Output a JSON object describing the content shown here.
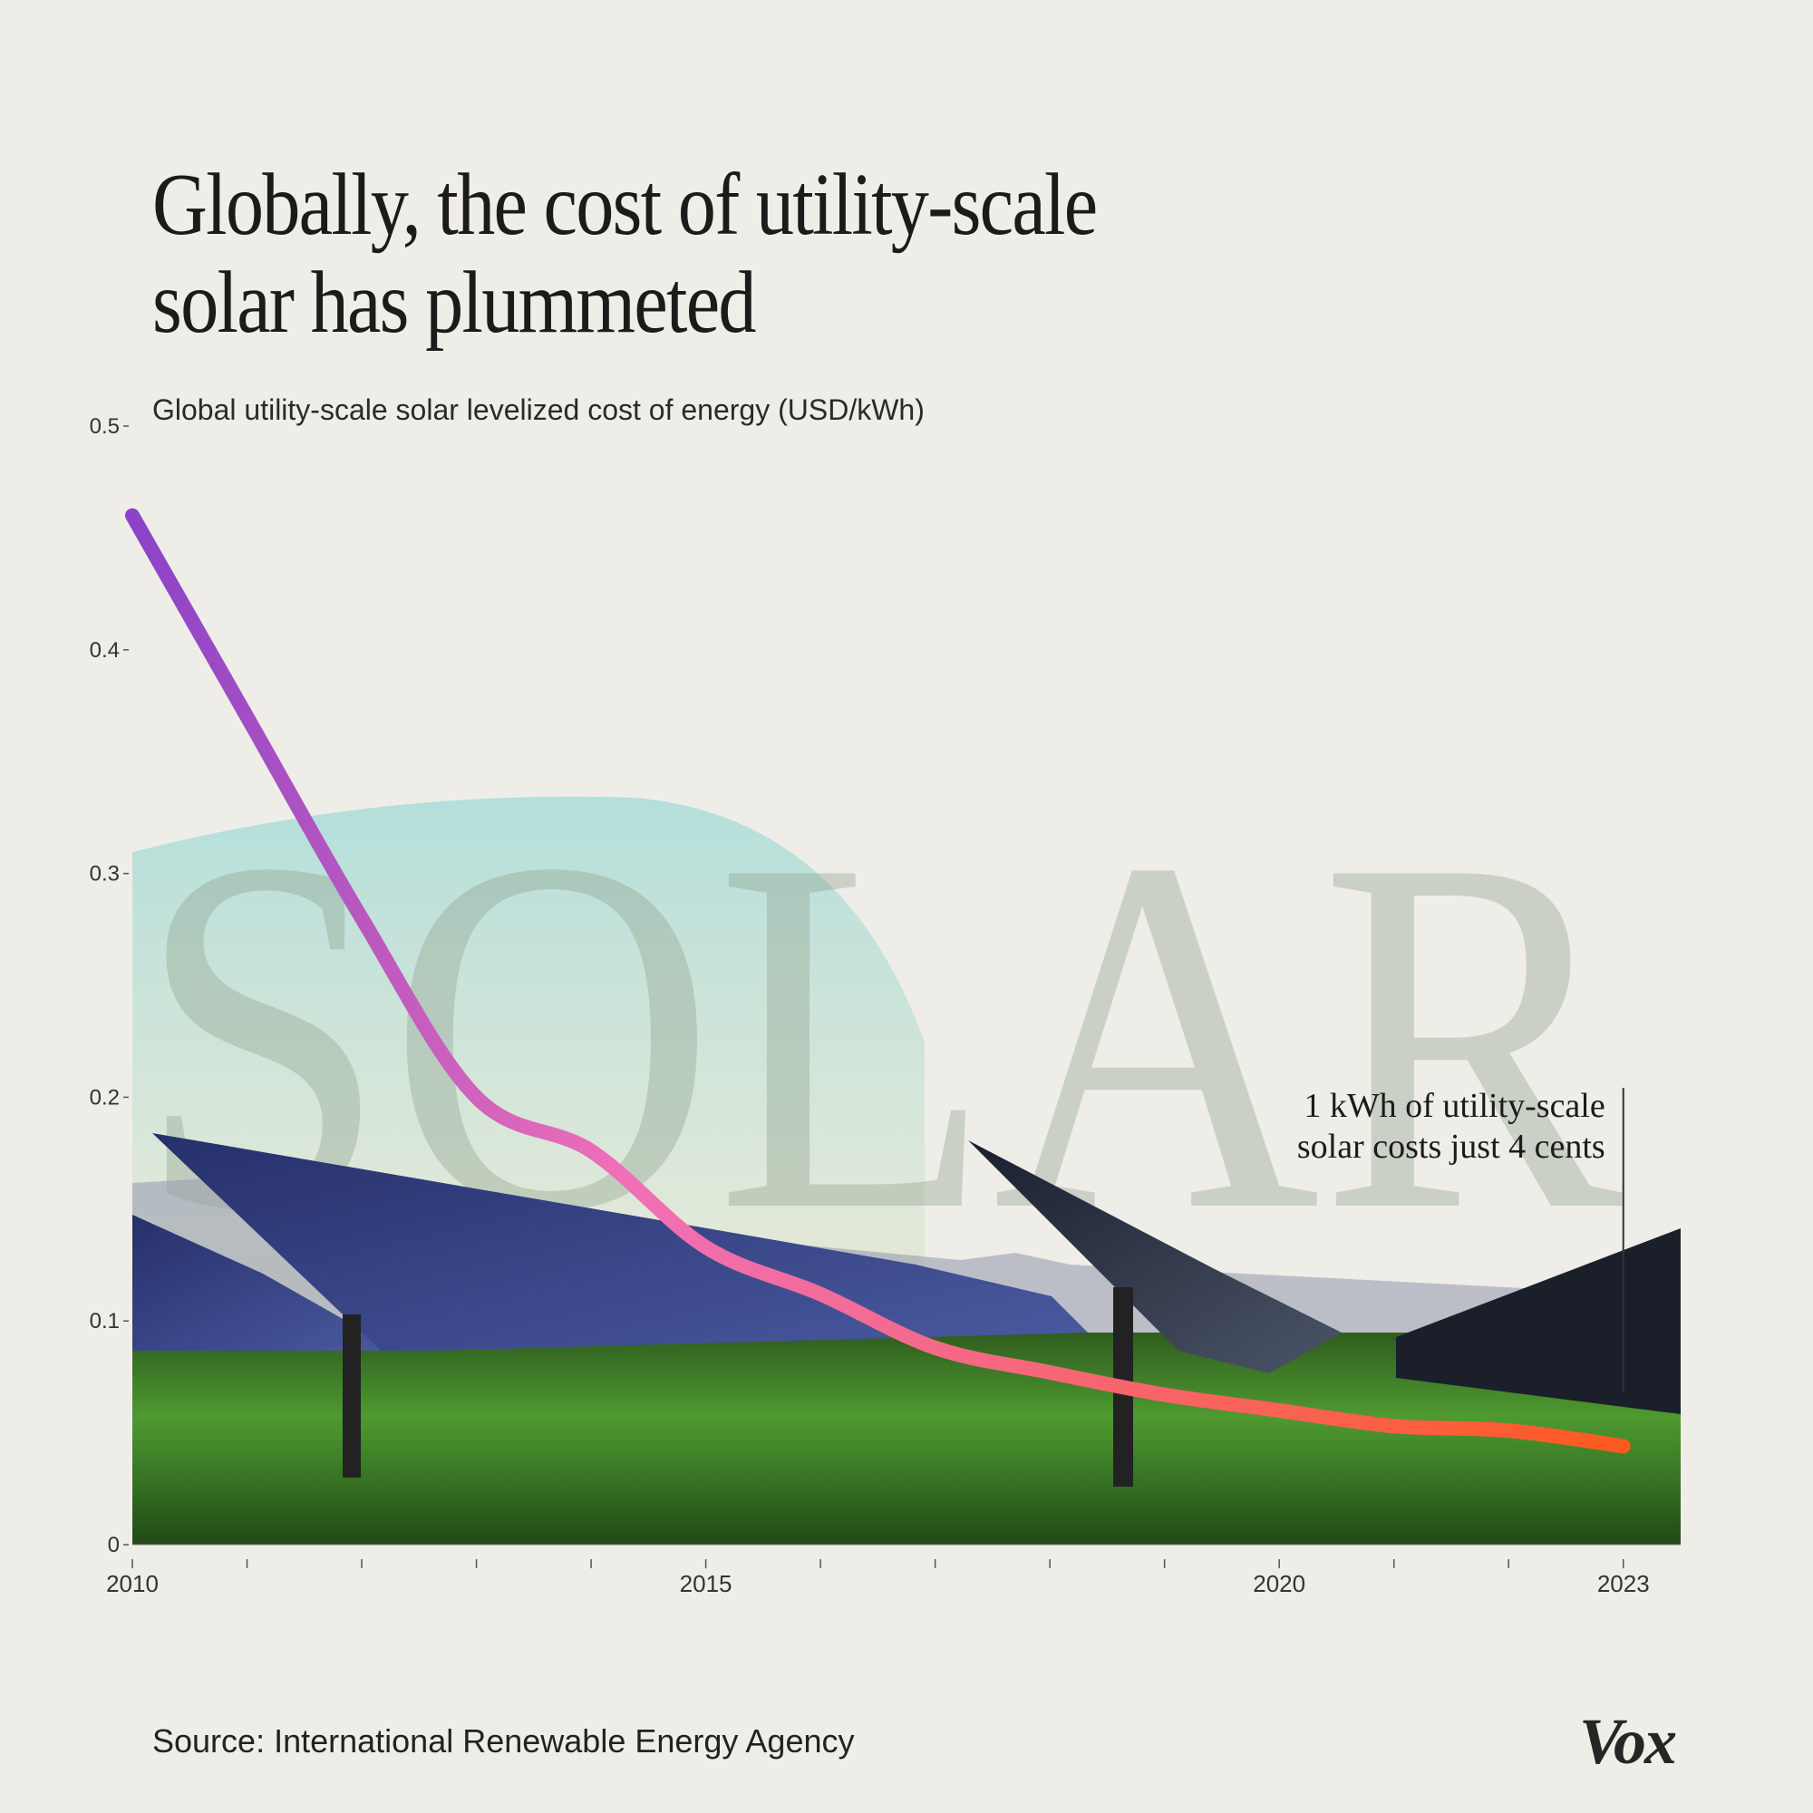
{
  "header": {
    "title_line1": "Globally, the cost of utility-scale",
    "title_line2": "solar has plummeted",
    "subtitle": "Global utility-scale solar levelized cost of energy (USD/kWh)"
  },
  "footer": {
    "source": "Source: International Renewable Energy Agency",
    "brand": "Vox"
  },
  "background": {
    "watermark_text": "SOLAR",
    "photo": "solar-panel-field-photo"
  },
  "colors": {
    "line_start": "#8a43c8",
    "line_mid": "#f070b8",
    "line_end": "#ff5a1f",
    "sky_arc": "#b8e0dc",
    "ground": "#3f8a2a",
    "panel": "#2b3a7a"
  },
  "chart_data": {
    "type": "line",
    "title": "Globally, the cost of utility-scale solar has plummeted",
    "ylabel": "Global utility-scale solar levelized cost of energy (USD/kWh)",
    "xlabel": "",
    "x": [
      2010,
      2011,
      2012,
      2013,
      2014,
      2015,
      2016,
      2017,
      2018,
      2019,
      2020,
      2021,
      2022,
      2023
    ],
    "values": [
      0.46,
      0.37,
      0.28,
      0.2,
      0.176,
      0.133,
      0.112,
      0.088,
      0.077,
      0.067,
      0.06,
      0.053,
      0.051,
      0.044
    ],
    "ylim": [
      0,
      0.5
    ],
    "xlim": [
      2010,
      2023.5
    ],
    "yticks": [
      "0",
      "0.1",
      "0.2",
      "0.3",
      "0.4",
      "0.5"
    ],
    "ytick_values": [
      0,
      0.1,
      0.2,
      0.3,
      0.4,
      0.5
    ],
    "xtick_labels": [
      "2010",
      "2015",
      "2020",
      "2023"
    ],
    "xtick_label_values": [
      2010,
      2015,
      2020,
      2023
    ],
    "annotation": {
      "line1": "1 kWh of utility-scale",
      "line2": "solar costs just 4 cents",
      "x": 2023
    },
    "grid": false,
    "legend": "none"
  }
}
